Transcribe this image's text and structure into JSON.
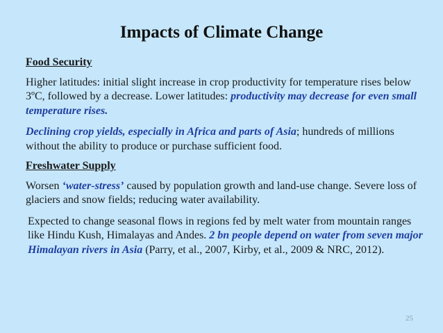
{
  "slide": {
    "title": "Impacts of Climate Change",
    "page_number": "25"
  },
  "food": {
    "heading": "Food Security",
    "p1_text": "Higher latitudes: initial slight increase in crop productivity for temperature rises below 3ºC, followed by a decrease. Lower latitudes: ",
    "p1_highlight": "productivity may decrease for even small temperature rises.",
    "p2_highlight": "Declining crop yields, especially in Africa and parts of Asia",
    "p2_text": "; hundreds of millions without the ability to produce or purchase sufficient food."
  },
  "water": {
    "heading": "Freshwater Supply",
    "p1_pre": "Worsen ",
    "p1_highlight": "‘water-stress’",
    "p1_post": " caused by population growth and land-use change. Severe loss of glaciers and snow fields; reducing water availability.",
    "p2_pre": "Expected to change seasonal flows in regions fed by melt water from mountain ranges like Hindu Kush, Himalayas and Andes. ",
    "p2_highlight": "2 bn people depend on water from seven major Himalayan rivers in Asia",
    "p2_post": " (Parry, et al., 2007, Kirby, et al., 2009 & NRC, 2012)."
  },
  "colors": {
    "background": "#c6e7fb",
    "highlight": "#1f3ea0"
  }
}
